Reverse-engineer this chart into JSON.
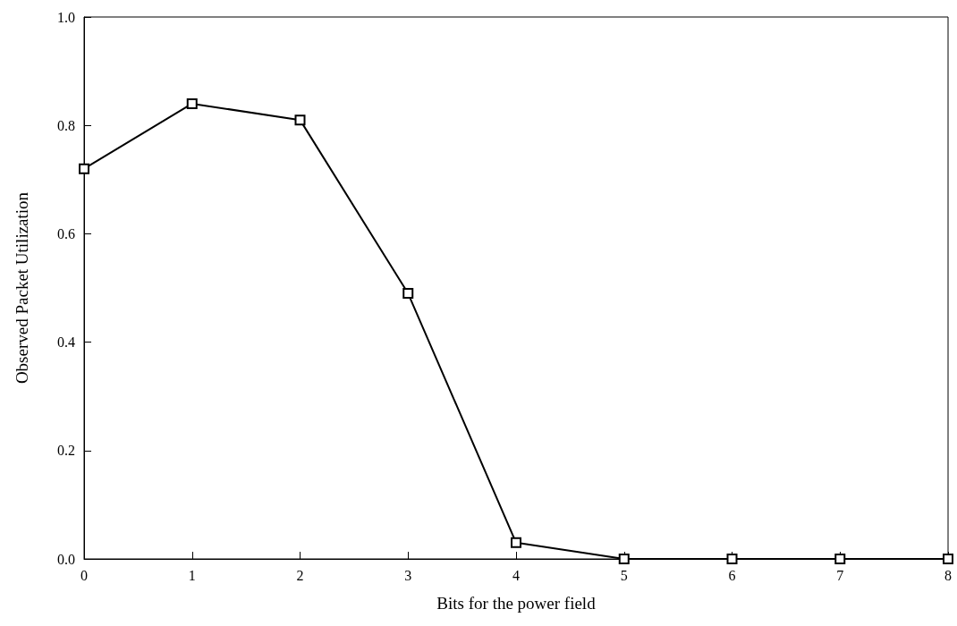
{
  "chart_data": {
    "type": "line",
    "xlabel": "Bits for the power field",
    "ylabel": "Observed Packet Utilization",
    "x": [
      0,
      1,
      2,
      3,
      4,
      5,
      6,
      7,
      8
    ],
    "series": [
      {
        "color": "#000000",
        "values": [
          0.72,
          0.84,
          0.81,
          0.49,
          0.03,
          0,
          0,
          0,
          0
        ]
      }
    ],
    "xlim": [
      0,
      8
    ],
    "xticks": [
      0,
      1,
      2,
      3,
      4,
      5,
      6,
      7,
      8
    ],
    "ylim": [
      0,
      1
    ],
    "yticks": [
      {
        "value": 0,
        "label": "0.0"
      },
      {
        "value": 0.2,
        "label": "0.2"
      },
      {
        "value": 0.4,
        "label": "0.4"
      },
      {
        "value": 0.6,
        "label": "0.6"
      },
      {
        "value": 0.8,
        "label": "0.8"
      },
      {
        "value": 1,
        "label": "1.0"
      }
    ],
    "grid": false,
    "marker": "square",
    "line_style": "solid"
  }
}
